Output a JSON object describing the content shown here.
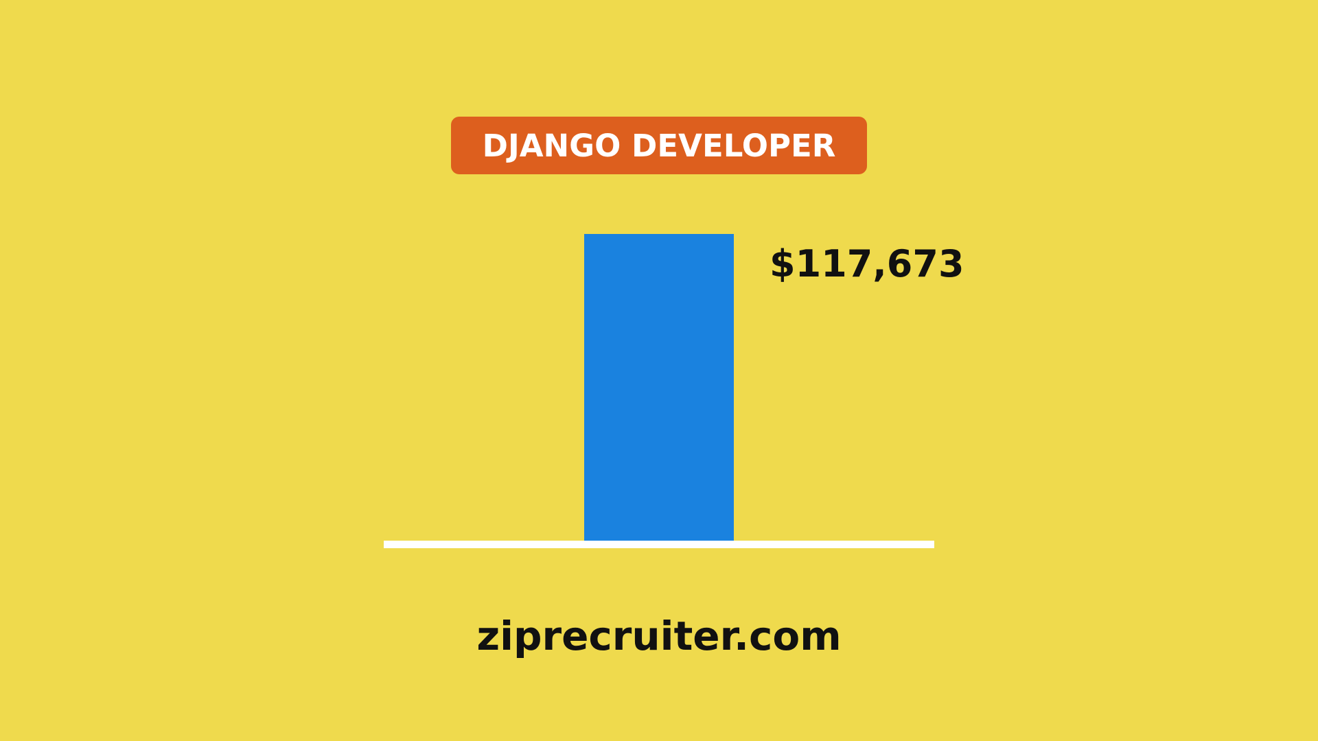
{
  "colors": {
    "background": "#EFDA4D",
    "badge": "#DD5F1E",
    "bar": "#1A82DF",
    "baseline": "#FFFFFF"
  },
  "chart_data": {
    "type": "bar",
    "title": "DJANGO DEVELOPER",
    "categories": [
      ""
    ],
    "values": [
      117673
    ],
    "value_labels": [
      "$117,673"
    ],
    "ylim": [
      0,
      117673
    ],
    "grid": false,
    "legend": "none"
  },
  "source": "ziprecruiter.com"
}
